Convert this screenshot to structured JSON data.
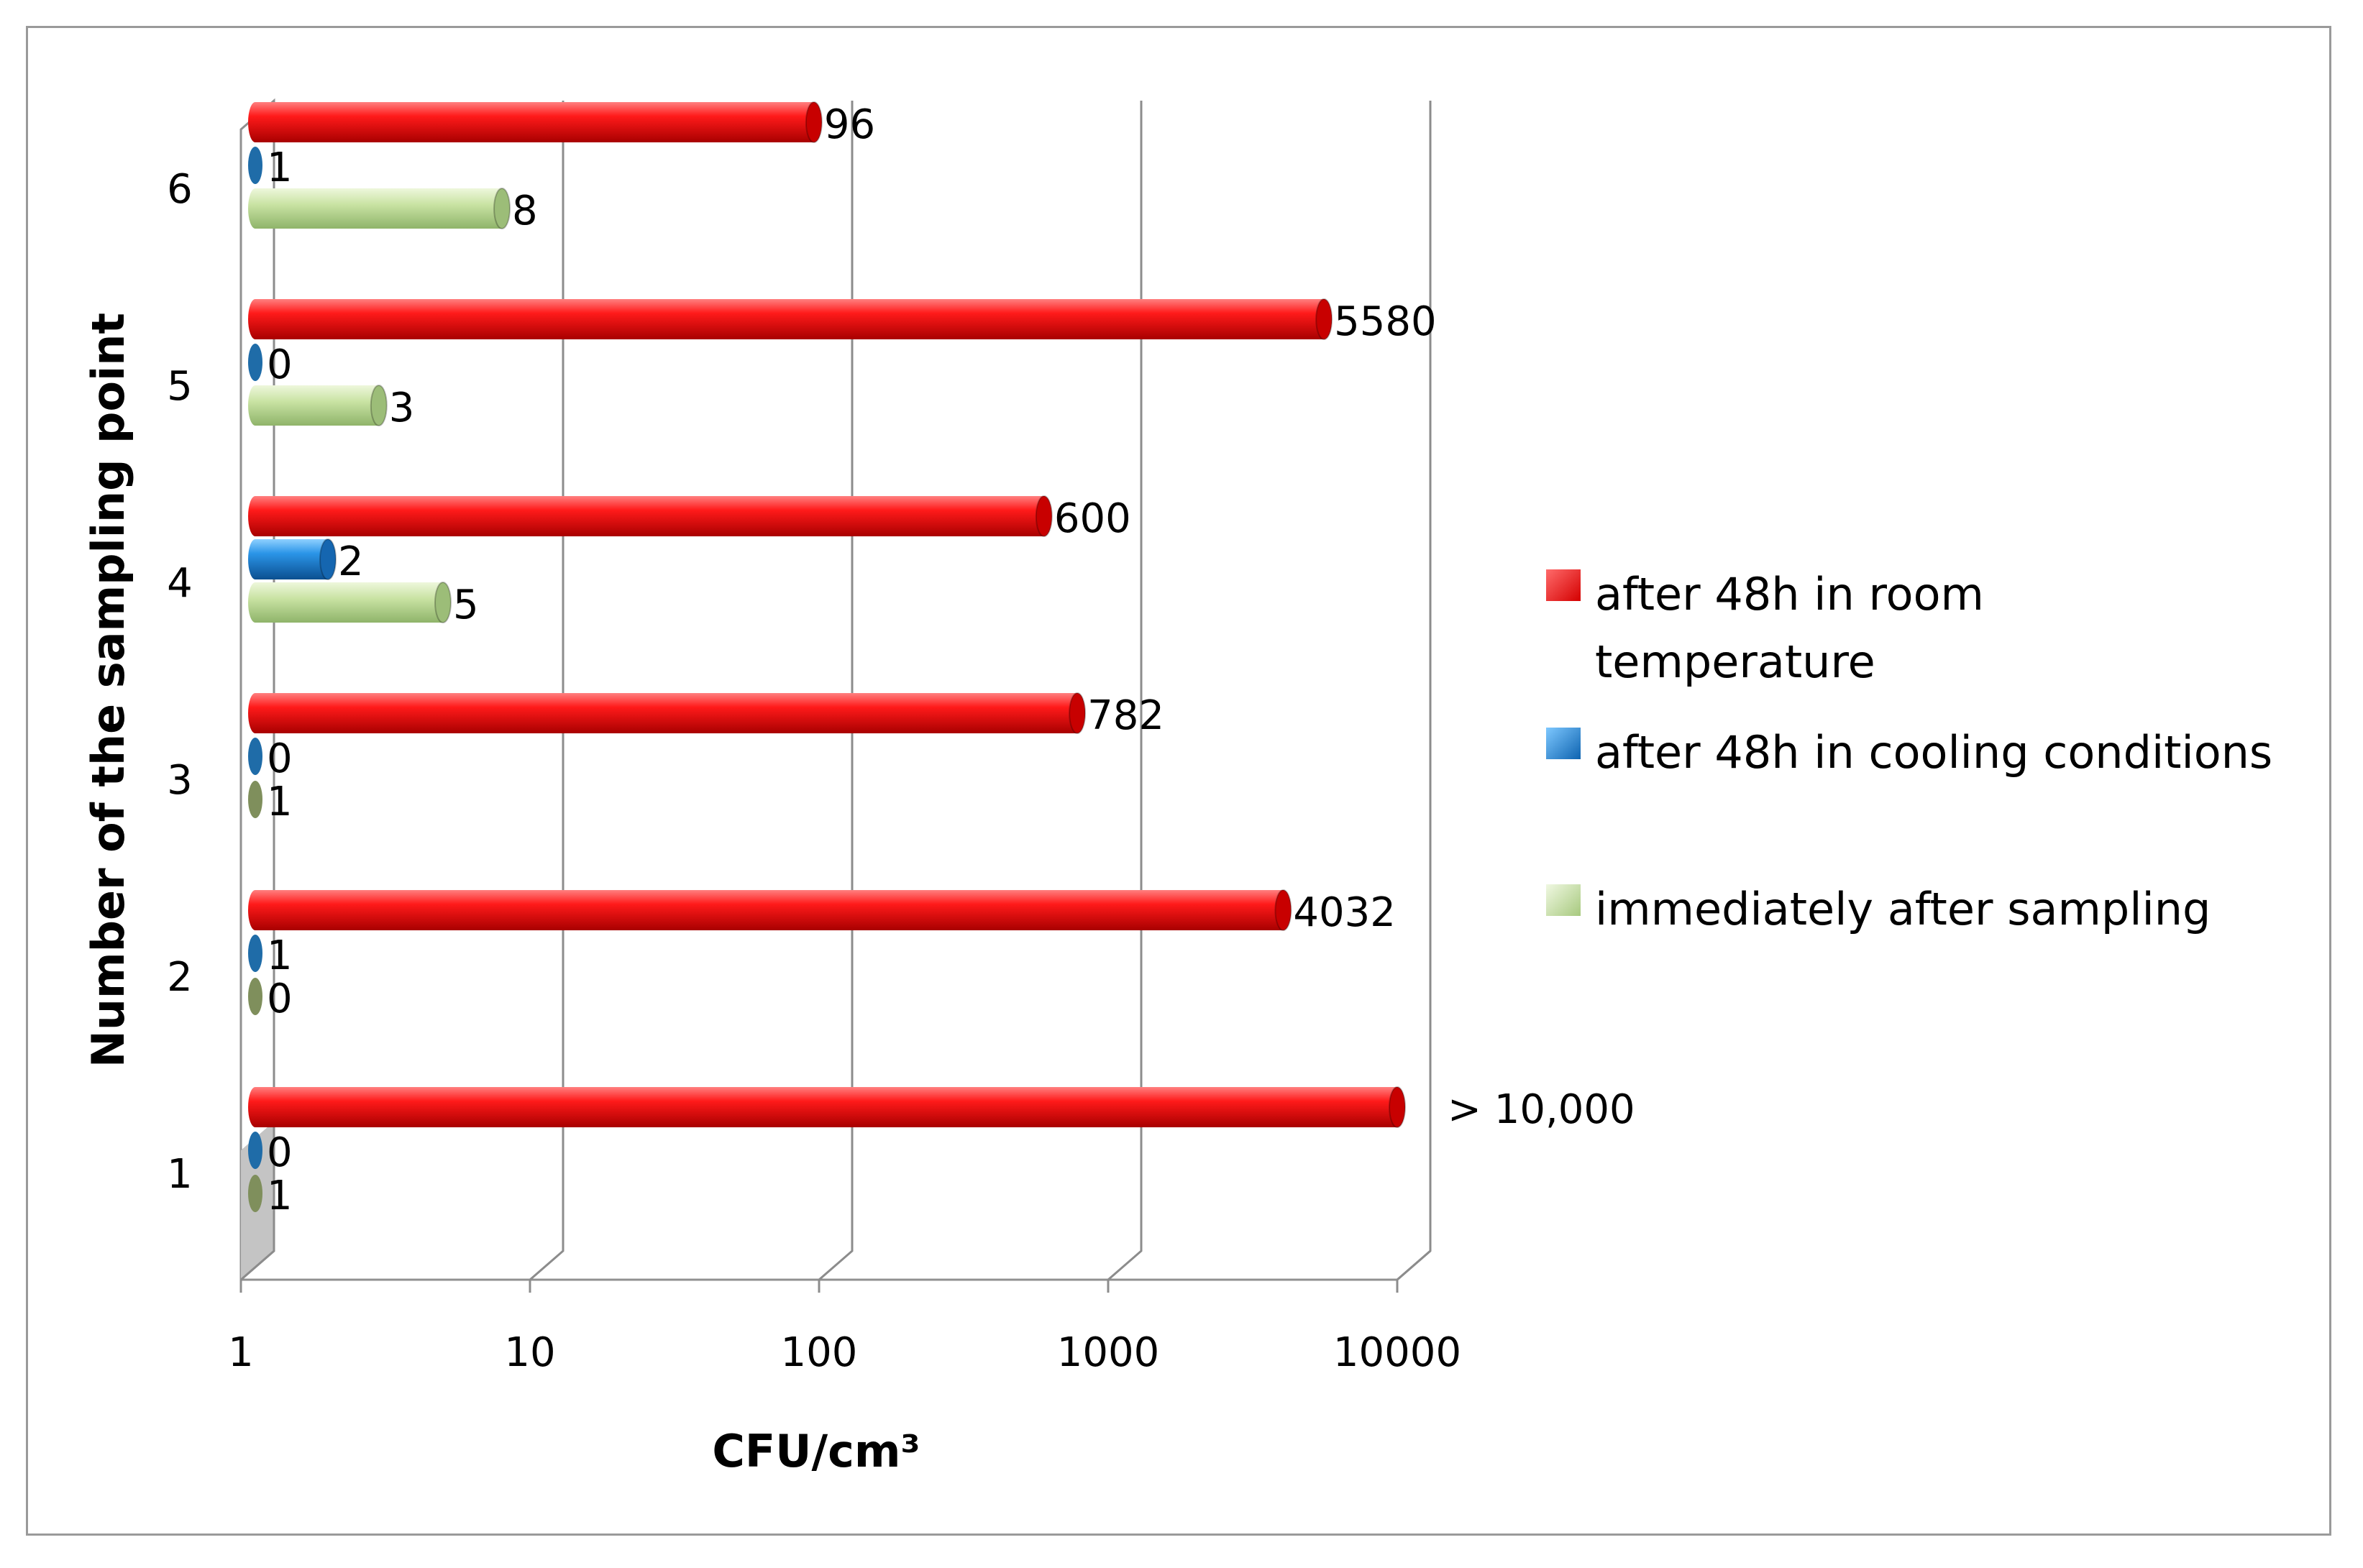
{
  "chart_data": {
    "type": "bar",
    "orientation": "horizontal",
    "three_d": true,
    "x_scale": "log",
    "xlim": [
      1,
      10000
    ],
    "xlabel": "CFU/cm³",
    "ylabel": "Number of the sampling point",
    "x_ticks": [
      "1",
      "10",
      "100",
      "1000",
      "10000"
    ],
    "categories": [
      "1",
      "2",
      "3",
      "4",
      "5",
      "6"
    ],
    "grid": true,
    "legend_position": "right",
    "series": [
      {
        "name": "after 48h in room temperature",
        "color": "#e00000",
        "values": [
          10000,
          4032,
          782,
          600,
          5580,
          96
        ],
        "labels": [
          "> 10,000",
          "4032",
          "782",
          "600",
          "5580",
          "96"
        ]
      },
      {
        "name": "after 48h in cooling conditions",
        "color": "#1a7fd0",
        "values": [
          0,
          1,
          0,
          2,
          0,
          1
        ],
        "labels": [
          "0",
          "1",
          "0",
          "2",
          "0",
          "1"
        ]
      },
      {
        "name": "immediately after sampling",
        "color": "#c4dc9c",
        "values": [
          1,
          0,
          1,
          5,
          3,
          8
        ],
        "labels": [
          "1",
          "0",
          "1",
          "5",
          "3",
          "8"
        ]
      }
    ]
  }
}
